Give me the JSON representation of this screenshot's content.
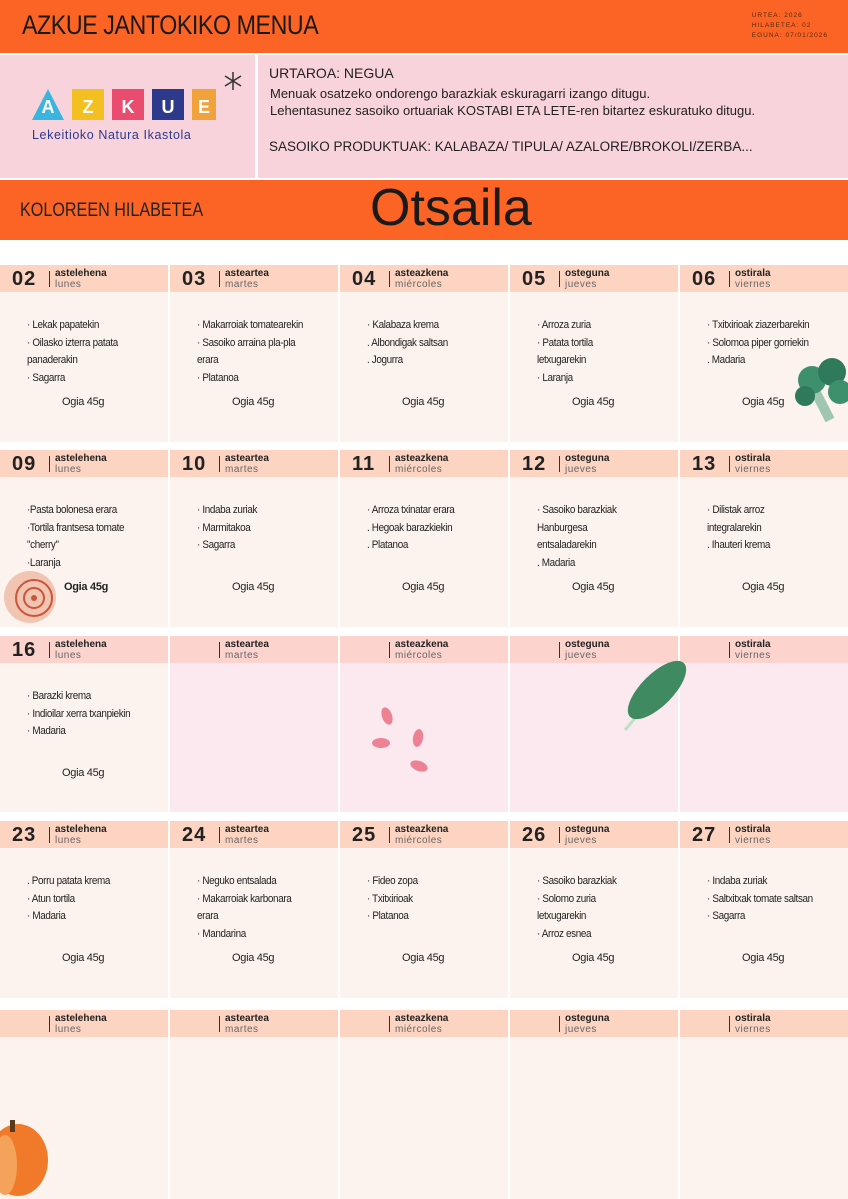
{
  "header": {
    "title": "AZKUE JANTOKIKO MENUA",
    "meta": [
      "URTEA: 2026",
      "HILABETEA: 02",
      "EGUNA: 07/01/2026"
    ]
  },
  "logo": {
    "letters": [
      "A",
      "Z",
      "K",
      "U",
      "E"
    ],
    "subtitle": "Lekeitioko Natura Ikastola"
  },
  "info": {
    "season": "URTAROA:  NEGUA",
    "lines": [
      "Menuak osatzeko ondorengo barazkiak eskuragarri izango ditugu.",
      "Lehentasunez sasoiko ortuariak KOSTABI ETA LETE-ren bitartez eskuratuko ditugu."
    ],
    "products": "SASOIKO PRODUKTUAK: KALABAZA/ TIPULA/ AZALORE/BROKOLI/ZERBA..."
  },
  "band": {
    "left": "KOLOREEN HILABETEA",
    "month": "Otsaila"
  },
  "weeks": [
    {
      "days": [
        {
          "number": "02",
          "eu": "astelehena",
          "es": "lunes",
          "items": [
            "· Lekak papatekin",
            "· Oilasko izterra patata panaderakin",
            "·  Sagarra"
          ],
          "bread": "Ogia 45g"
        },
        {
          "number": "03",
          "eu": "asteartea",
          "es": "martes",
          "items": [
            "· Makarroiak tomatearekin",
            "· Sasoiko arraina pla-pla erara",
            "· Platanoa"
          ],
          "bread": "Ogia 45g"
        },
        {
          "number": "04",
          "eu": "asteazkena",
          "es": "miércoles",
          "items": [
            "· Kalabaza krema",
            ". Albondigak saltsan",
            ". Jogurra"
          ],
          "bread": "Ogia 45g"
        },
        {
          "number": "05",
          "eu": "osteguna",
          "es": "jueves",
          "items": [
            "· Arroza zuria",
            "· Patata tortila letxugarekin",
            "· Laranja"
          ],
          "bread": "Ogia 45g"
        },
        {
          "number": "06",
          "eu": "ostirala",
          "es": "viernes",
          "items": [
            "· Txitxirioak ziazerbarekin",
            "· Solomoa piper gorriekin",
            ". Madaria"
          ],
          "bread": "Ogia 45g"
        }
      ]
    },
    {
      "days": [
        {
          "number": "09",
          "eu": "astelehena",
          "es": "lunes",
          "items": [
            "·Pasta bolonesa erara",
            "·Tortila frantsesa tomate \"cherry\"",
            "·Laranja"
          ],
          "bread": "Ogia 45g"
        },
        {
          "number": "10",
          "eu": "asteartea",
          "es": "martes",
          "items": [
            "· Indaba zuriak",
            "· Marmitakoa",
            "· Sagarra"
          ],
          "bread": "Ogia 45g"
        },
        {
          "number": "11",
          "eu": "asteazkena",
          "es": "miércoles",
          "items": [
            "· Arroza  txinatar erara",
            ". Hegoak barazkiekin",
            ". Platanoa"
          ],
          "bread": "Ogia 45g"
        },
        {
          "number": "12",
          "eu": "osteguna",
          "es": "jueves",
          "items": [
            "· Sasoiko barazkiak Hanburgesa entsaladarekin",
            ". Madaria"
          ],
          "bread": "Ogia 45g"
        },
        {
          "number": "13",
          "eu": "ostirala",
          "es": "viernes",
          "items": [
            "· Dilistak arroz integralarekin",
            ".  Ihauteri krema"
          ],
          "bread": "Ogia 45g"
        }
      ]
    },
    {
      "days": [
        {
          "number": "16",
          "eu": "astelehena",
          "es": "lunes",
          "items": [
            "· Barazki krema",
            "· Indioilar xerra txanpiekin",
            "· Madaria"
          ],
          "bread": "Ogia 45g"
        },
        {
          "eu": "asteartea",
          "es": "martes"
        },
        {
          "eu": "asteazkena",
          "es": "miércoles"
        },
        {
          "eu": "osteguna",
          "es": "jueves"
        },
        {
          "eu": "ostirala",
          "es": "viernes"
        }
      ]
    },
    {
      "days": [
        {
          "number": "23",
          "eu": "astelehena",
          "es": "lunes",
          "items": [
            ". Porru patata krema",
            "· Atun tortila",
            "· Madaria"
          ],
          "bread": "Ogia 45g"
        },
        {
          "number": "24",
          "eu": "asteartea",
          "es": "martes",
          "items": [
            "· Neguko entsalada",
            "· Makarroiak karbonara erara",
            "· Mandarina"
          ],
          "bread": "Ogia 45g"
        },
        {
          "number": "25",
          "eu": "asteazkena",
          "es": "miércoles",
          "items": [
            "· Fideo zopa",
            "· Txitxirioak",
            "· Platanoa"
          ],
          "bread": "Ogia 45g"
        },
        {
          "number": "26",
          "eu": "osteguna",
          "es": "jueves",
          "items": [
            "· Sasoiko barazkiak",
            "· Solomo zuria letxugarekin",
            "· Arroz esnea"
          ],
          "bread": "Ogia 45g"
        },
        {
          "number": "27",
          "eu": "ostirala",
          "es": "viernes",
          "items": [
            "· Indaba zuriak",
            "· Saltxitxak tomate saltsan",
            "· Sagarra"
          ],
          "bread": "Ogia 45g"
        }
      ]
    },
    {
      "days": [
        {
          "eu": "astelehena",
          "es": "lunes"
        },
        {
          "eu": "asteartea",
          "es": "martes"
        },
        {
          "eu": "asteazkena",
          "es": "miércoles"
        },
        {
          "eu": "osteguna",
          "es": "jueves"
        },
        {
          "eu": "ostirala",
          "es": "viernes"
        }
      ]
    }
  ]
}
